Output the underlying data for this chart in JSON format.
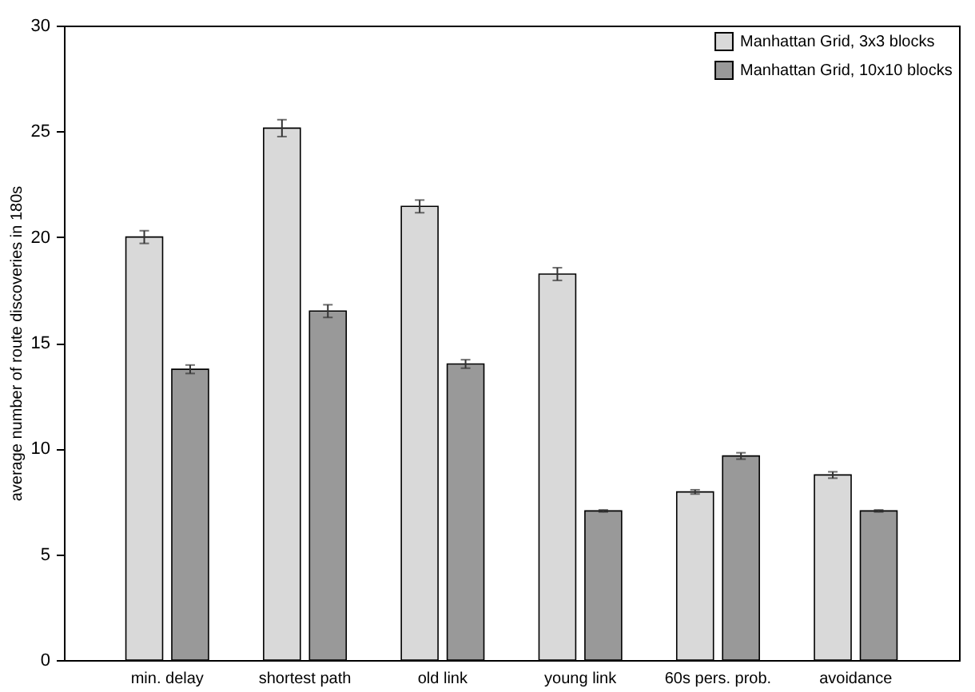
{
  "chart_data": {
    "type": "bar",
    "ylabel": "average number of route discoveries in 180s",
    "categories": [
      "min. delay",
      "shortest path",
      "old link",
      "young link",
      "60s pers. prob.",
      "avoidance"
    ],
    "series": [
      {
        "name": "Manhattan Grid, 3x3 blocks",
        "color": "#d9d9d9",
        "values": [
          20.0,
          25.15,
          21.45,
          18.25,
          7.95,
          8.75
        ],
        "errors": [
          0.3,
          0.4,
          0.3,
          0.3,
          0.1,
          0.15
        ]
      },
      {
        "name": "Manhattan Grid, 10x10 blocks",
        "color": "#999999",
        "values": [
          13.75,
          16.5,
          14.0,
          7.05,
          9.65,
          7.05
        ],
        "errors": [
          0.2,
          0.3,
          0.2,
          0.05,
          0.15,
          0.05
        ]
      }
    ],
    "ylim": [
      0,
      30
    ],
    "yticks": [
      0,
      5,
      10,
      15,
      20,
      25,
      30
    ],
    "grid": false,
    "legend": "top right"
  }
}
